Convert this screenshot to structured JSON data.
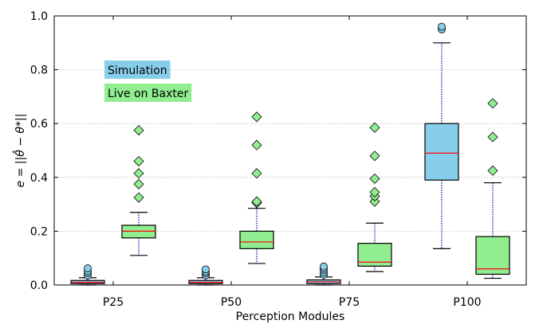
{
  "chart_data": {
    "type": "box",
    "xlabel": "Perception Modules",
    "ylabel": "e = ||θ̂ − θ*||",
    "ylim": [
      0.0,
      1.0
    ],
    "yticks": [
      "0.0",
      "0.2",
      "0.4",
      "0.6",
      "0.8",
      "1.0"
    ],
    "categories": [
      "P25",
      "P50",
      "P75",
      "P100"
    ],
    "grid": "horizontal dotted",
    "legend_placement": "upper-left",
    "series": [
      {
        "name": "Simulation",
        "color": "#87CEEB",
        "outlier_marker": "circle",
        "boxes": [
          {
            "whisker_low": 0.0,
            "q1": 0.005,
            "median": 0.01,
            "q3": 0.017,
            "whisker_high": 0.027,
            "outliers": [
              0.035,
              0.045,
              0.052,
              0.062
            ]
          },
          {
            "whisker_low": 0.0,
            "q1": 0.005,
            "median": 0.01,
            "q3": 0.017,
            "whisker_high": 0.027,
            "outliers": [
              0.036,
              0.044,
              0.05,
              0.058
            ]
          },
          {
            "whisker_low": 0.0,
            "q1": 0.005,
            "median": 0.012,
            "q3": 0.019,
            "whisker_high": 0.03,
            "outliers": [
              0.038,
              0.046,
              0.055,
              0.062,
              0.069
            ]
          },
          {
            "whisker_low": 0.135,
            "q1": 0.39,
            "median": 0.49,
            "q3": 0.6,
            "whisker_high": 0.9,
            "outliers": [
              0.95,
              0.96
            ]
          }
        ]
      },
      {
        "name": "Live on Baxter",
        "color": "#90EE90",
        "outlier_marker": "diamond",
        "boxes": [
          {
            "whisker_low": 0.11,
            "q1": 0.175,
            "median": 0.2,
            "q3": 0.222,
            "whisker_high": 0.27,
            "outliers": [
              0.325,
              0.375,
              0.415,
              0.46,
              0.575
            ]
          },
          {
            "whisker_low": 0.08,
            "q1": 0.135,
            "median": 0.16,
            "q3": 0.2,
            "whisker_high": 0.285,
            "outliers": [
              0.305,
              0.31,
              0.415,
              0.52,
              0.625
            ]
          },
          {
            "whisker_low": 0.05,
            "q1": 0.07,
            "median": 0.085,
            "q3": 0.155,
            "whisker_high": 0.23,
            "outliers": [
              0.31,
              0.33,
              0.345,
              0.395,
              0.48,
              0.585
            ]
          },
          {
            "whisker_low": 0.025,
            "q1": 0.04,
            "median": 0.06,
            "q3": 0.18,
            "whisker_high": 0.38,
            "outliers": [
              0.425,
              0.55,
              0.675
            ]
          }
        ]
      }
    ]
  }
}
